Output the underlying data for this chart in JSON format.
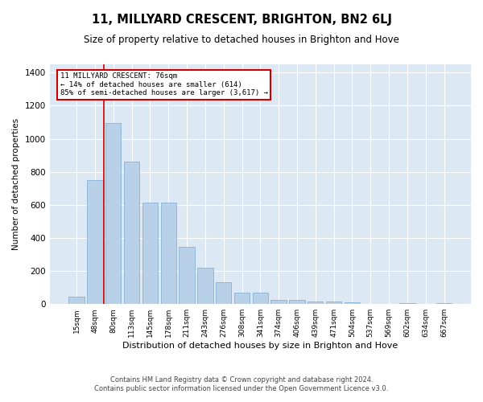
{
  "title": "11, MILLYARD CRESCENT, BRIGHTON, BN2 6LJ",
  "subtitle": "Size of property relative to detached houses in Brighton and Hove",
  "xlabel": "Distribution of detached houses by size in Brighton and Hove",
  "ylabel": "Number of detached properties",
  "footer_line1": "Contains HM Land Registry data © Crown copyright and database right 2024.",
  "footer_line2": "Contains public sector information licensed under the Open Government Licence v3.0.",
  "categories": [
    "15sqm",
    "48sqm",
    "80sqm",
    "113sqm",
    "145sqm",
    "178sqm",
    "211sqm",
    "243sqm",
    "276sqm",
    "308sqm",
    "341sqm",
    "374sqm",
    "406sqm",
    "439sqm",
    "471sqm",
    "504sqm",
    "537sqm",
    "569sqm",
    "602sqm",
    "634sqm",
    "667sqm"
  ],
  "values": [
    47,
    748,
    1097,
    862,
    613,
    613,
    345,
    218,
    130,
    67,
    67,
    27,
    27,
    17,
    17,
    10,
    2,
    2,
    7,
    2,
    7
  ],
  "bar_color": "#b8d0e8",
  "bar_edge_color": "#7aaad0",
  "vline_x": 1.5,
  "vline_color": "#cc0000",
  "annotation_text1": "11 MILLYARD CRESCENT: 76sqm",
  "annotation_text2": "← 14% of detached houses are smaller (614)",
  "annotation_text3": "85% of semi-detached houses are larger (3,617) →",
  "annotation_box_color": "#ffffff",
  "annotation_border_color": "#cc0000",
  "ylim": [
    0,
    1450
  ],
  "plot_bg_color": "#dde8f5",
  "fig_bg_color": "#ffffff"
}
